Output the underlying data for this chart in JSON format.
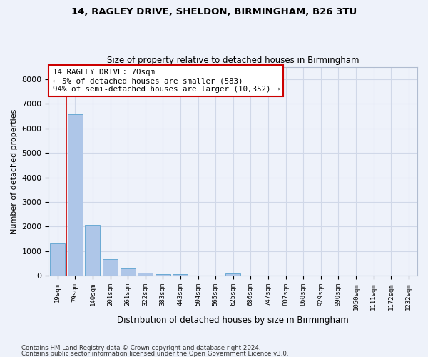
{
  "title1": "14, RAGLEY DRIVE, SHELDON, BIRMINGHAM, B26 3TU",
  "title2": "Size of property relative to detached houses in Birmingham",
  "xlabel": "Distribution of detached houses by size in Birmingham",
  "ylabel": "Number of detached properties",
  "bar_labels": [
    "19sqm",
    "79sqm",
    "140sqm",
    "201sqm",
    "261sqm",
    "322sqm",
    "383sqm",
    "443sqm",
    "504sqm",
    "565sqm",
    "625sqm",
    "686sqm",
    "747sqm",
    "807sqm",
    "868sqm",
    "929sqm",
    "990sqm",
    "1050sqm",
    "1111sqm",
    "1172sqm",
    "1232sqm"
  ],
  "bar_values": [
    1320,
    6560,
    2080,
    680,
    290,
    130,
    80,
    80,
    0,
    0,
    90,
    0,
    0,
    0,
    0,
    0,
    0,
    0,
    0,
    0,
    0
  ],
  "bar_color": "#aec6e8",
  "bar_edge_color": "#6aaad4",
  "annotation_box_text": "14 RAGLEY DRIVE: 70sqm\n← 5% of detached houses are smaller (583)\n94% of semi-detached houses are larger (10,352) →",
  "annotation_box_color": "#ffffff",
  "annotation_box_edge_color": "#cc0000",
  "vline_color": "#cc0000",
  "ylim": [
    0,
    8500
  ],
  "yticks": [
    0,
    1000,
    2000,
    3000,
    4000,
    5000,
    6000,
    7000,
    8000
  ],
  "grid_color": "#d0d8e8",
  "bg_color": "#eef2fa",
  "footnote1": "Contains HM Land Registry data © Crown copyright and database right 2024.",
  "footnote2": "Contains public sector information licensed under the Open Government Licence v3.0."
}
